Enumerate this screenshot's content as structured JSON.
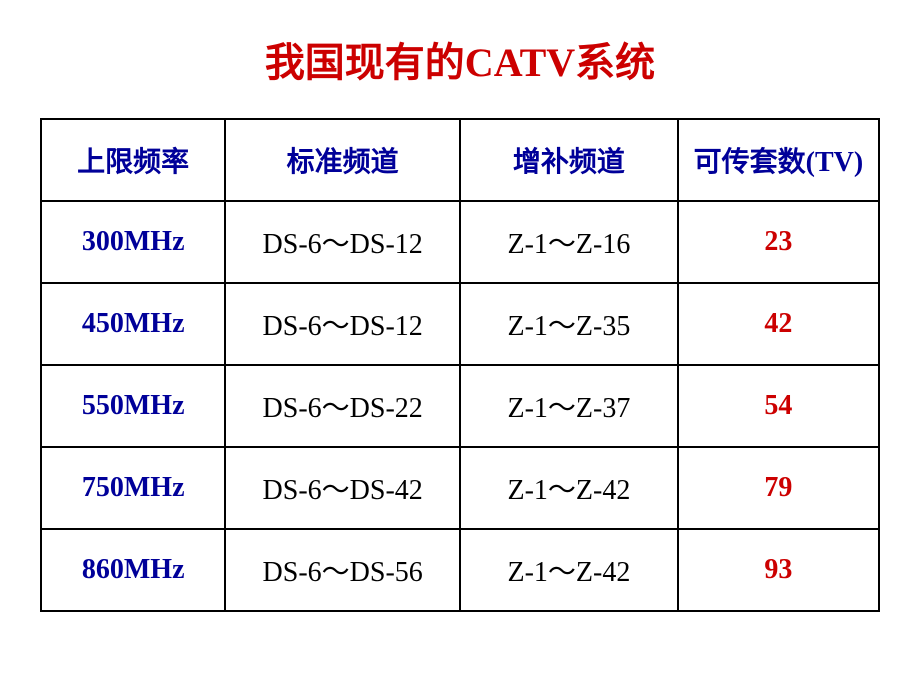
{
  "title": "我国现有的CATV系统",
  "table": {
    "headers": [
      "上限频率",
      "标准频道",
      "增补频道",
      "可传套数(TV)"
    ],
    "rows": [
      {
        "freq": "300MHz",
        "std": "DS-6～DS-12",
        "supp": "Z-1～Z-16",
        "count": "23"
      },
      {
        "freq": "450MHz",
        "std": "DS-6～DS-12",
        "supp": "Z-1～Z-35",
        "count": "42"
      },
      {
        "freq": "550MHz",
        "std": "DS-6～DS-22",
        "supp": "Z-1～Z-37",
        "count": "54"
      },
      {
        "freq": "750MHz",
        "std": "DS-6～DS-42",
        "supp": "Z-1～Z-42",
        "count": "79"
      },
      {
        "freq": "860MHz",
        "std": "DS-6～DS-56",
        "supp": "Z-1～Z-42",
        "count": "93"
      }
    ]
  },
  "colors": {
    "title": "#cc0000",
    "header_text": "#000099",
    "freq_text": "#000099",
    "body_text": "#000000",
    "count_text": "#cc0000",
    "border": "#000000",
    "background": "#ffffff"
  }
}
